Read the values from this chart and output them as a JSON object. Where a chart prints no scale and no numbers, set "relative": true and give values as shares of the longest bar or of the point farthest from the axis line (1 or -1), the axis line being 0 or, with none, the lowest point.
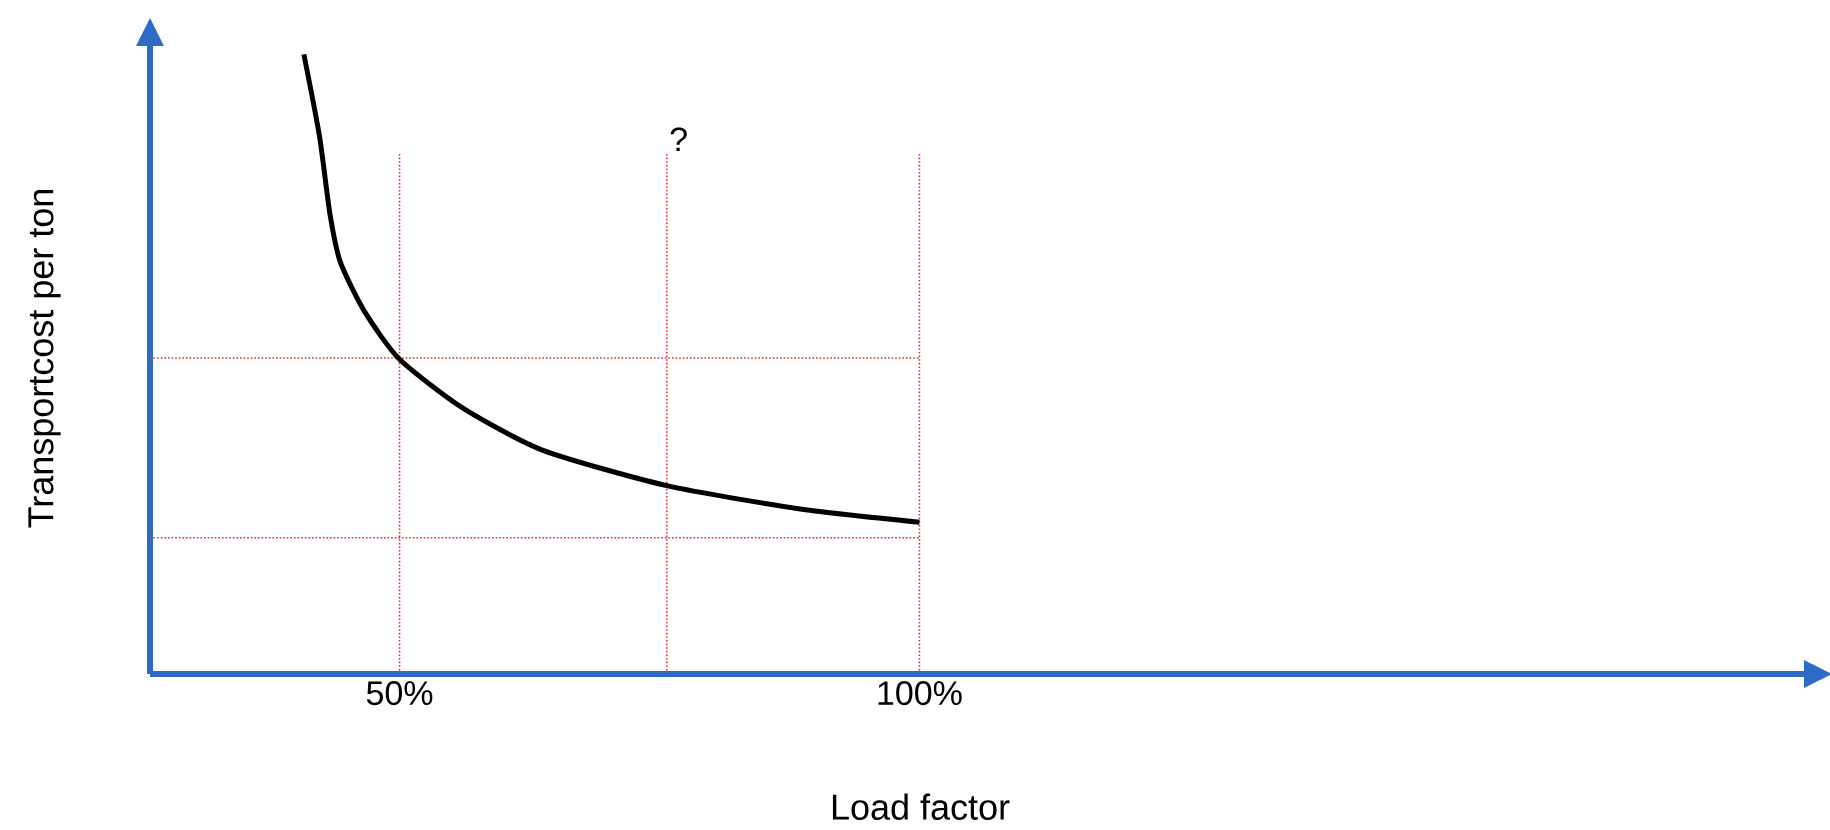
{
  "chart_data": {
    "type": "line",
    "relative": true,
    "xlabel": "Load factor",
    "ylabel": "Transportcost per ton",
    "xlim": [
      26,
      187
    ],
    "xticks": [
      {
        "value": 50,
        "label": "50%"
      },
      {
        "value": 100,
        "label": "100%"
      }
    ],
    "series": [
      {
        "color": "#000000",
        "x": [
          40.8,
          42.3,
          43.3,
          44.3,
          46.6,
          50,
          56.1,
          63.8,
          75.7,
          88.7,
          100
        ],
        "values": [
          1,
          0.868,
          0.743,
          0.665,
          0.586,
          0.508,
          0.429,
          0.361,
          0.304,
          0.266,
          0.245
        ]
      }
    ],
    "ref_lines": [
      {
        "axis": "x",
        "value": 50,
        "color": "#e03030",
        "line_style": "dotted"
      },
      {
        "axis": "x",
        "value": 75.7,
        "label": "?",
        "color": "#e03030",
        "line_style": "dotted"
      },
      {
        "axis": "x",
        "value": 100,
        "color": "#e03030",
        "line_style": "dotted"
      },
      {
        "axis": "y",
        "value": 0.51,
        "color": "#e03030",
        "line_style": "dotted"
      },
      {
        "axis": "y",
        "value": 0.22,
        "color": "#e03030",
        "line_style": "dotted"
      }
    ],
    "grid": false
  }
}
